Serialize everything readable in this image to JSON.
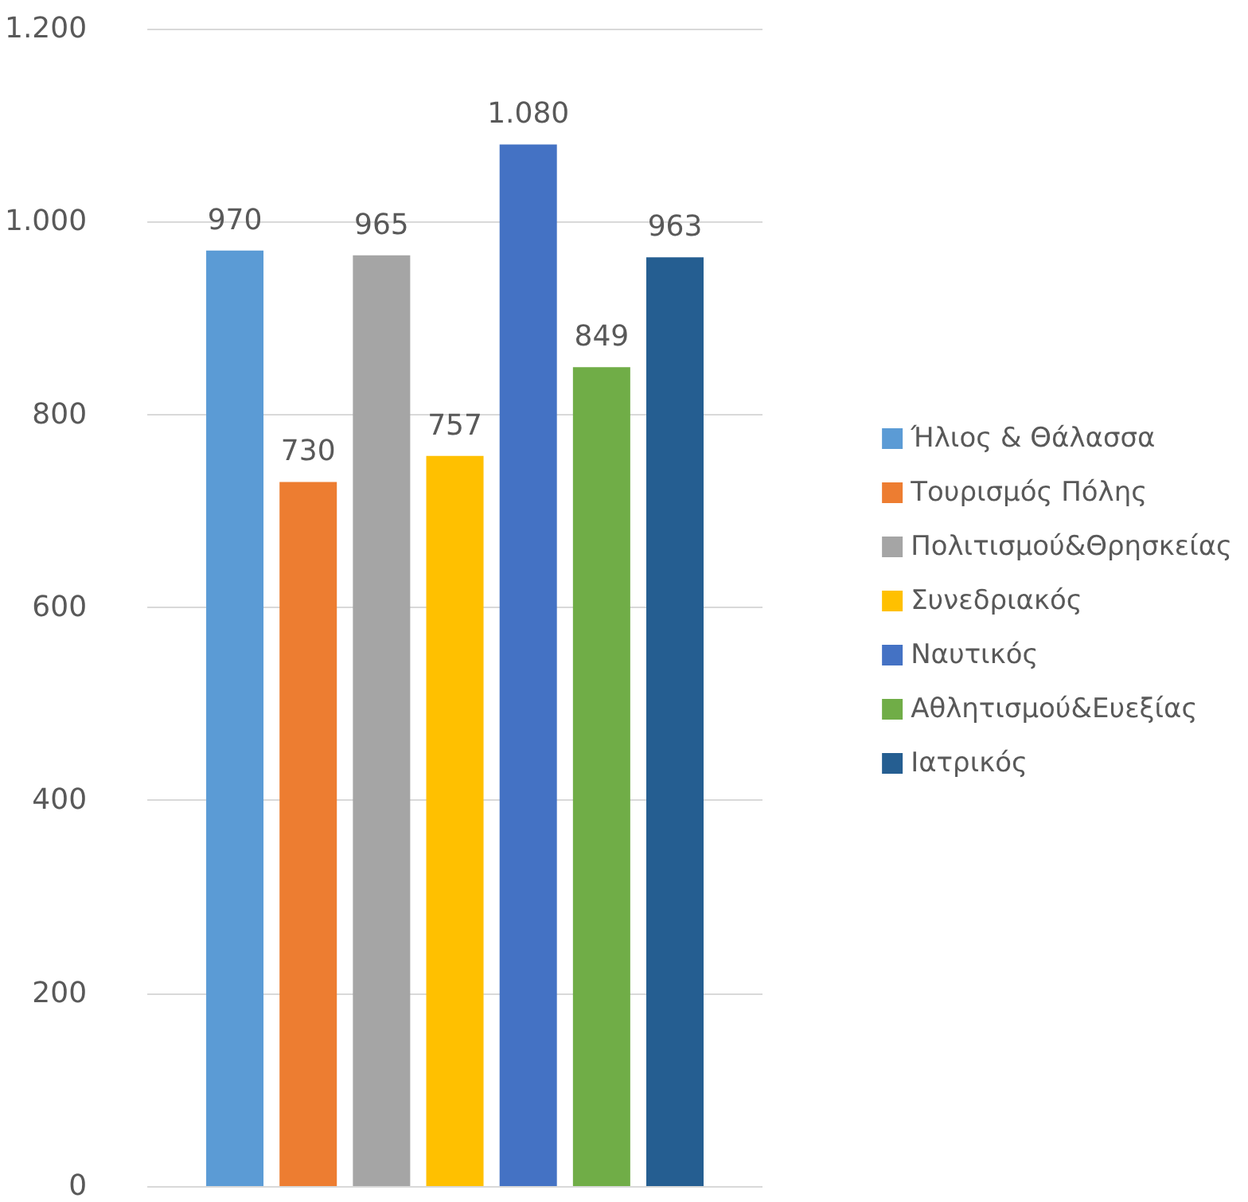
{
  "chart_data": {
    "type": "bar",
    "categories": [
      null
    ],
    "series": [
      {
        "name": "Ήλιος & Θάλασσα",
        "color": "#5b9bd5",
        "values": [
          970
        ],
        "value_labels": [
          "970"
        ]
      },
      {
        "name": "Τουρισμός Πόλης",
        "color": "#ed7d31",
        "values": [
          730
        ],
        "value_labels": [
          "730"
        ]
      },
      {
        "name": "Πολιτισμού&Θρησκείας",
        "color": "#a5a5a5",
        "values": [
          965
        ],
        "value_labels": [
          "965"
        ]
      },
      {
        "name": "Συνεδριακός",
        "color": "#ffc000",
        "values": [
          757
        ],
        "value_labels": [
          "757"
        ]
      },
      {
        "name": "Ναυτικός",
        "color": "#4472c4",
        "values": [
          1080
        ],
        "value_labels": [
          "1.080"
        ]
      },
      {
        "name": "Αθλητισμού&Ευεξίας",
        "color": "#70ad47",
        "values": [
          849
        ],
        "value_labels": [
          "849"
        ]
      },
      {
        "name": "Ιατρικός",
        "color": "#255e91",
        "values": [
          963
        ],
        "value_labels": [
          "963"
        ]
      }
    ],
    "ylim": [
      0,
      1200
    ],
    "yticks": [
      0,
      200,
      400,
      600,
      800,
      {
        "value": 1000,
        "label": "1.000"
      },
      {
        "value": 1200,
        "label": "1.200"
      }
    ],
    "grid": "y",
    "legend": "right"
  }
}
